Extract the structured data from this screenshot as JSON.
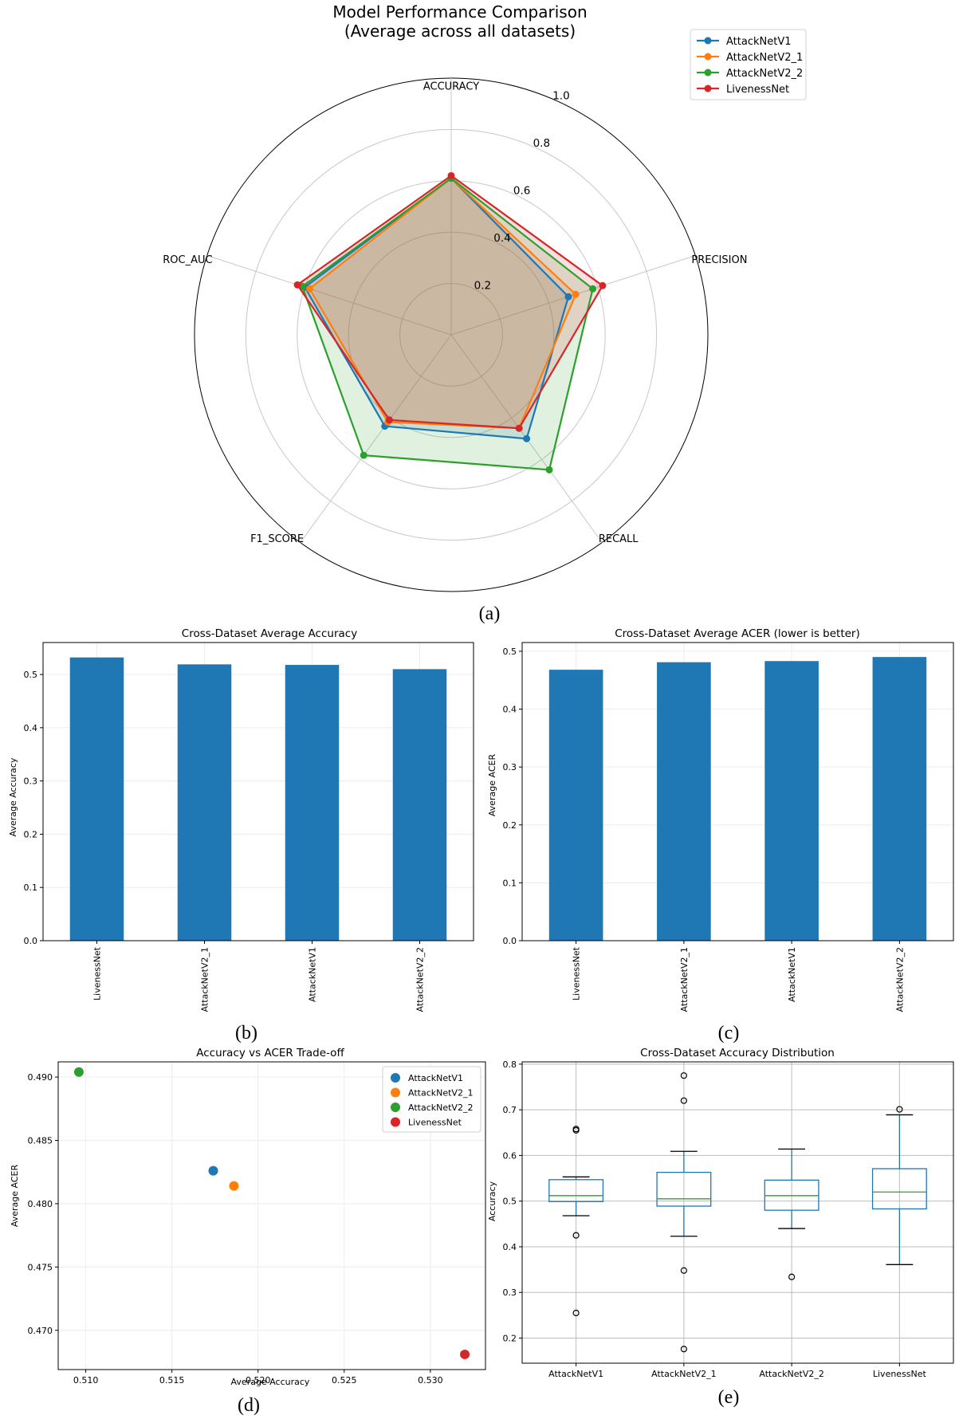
{
  "colors": {
    "AttackNetV1": "#1f77b4",
    "AttackNetV2_1": "#ff7f0e",
    "AttackNetV2_2": "#2ca02c",
    "LivenessNet": "#d62728",
    "bar": "#1f77b4",
    "median": "#2ca02c"
  },
  "chart_data": [
    {
      "id": "a",
      "type": "radar",
      "caption": "(a)",
      "title": "Model Performance Comparison\n(Average across all datasets)",
      "axes": [
        "ACCURACY",
        "PRECISION",
        "RECALL",
        "F1_SCORE",
        "ROC_AUC"
      ],
      "r_ticks": [
        0.2,
        0.4,
        0.6,
        0.8,
        1.0
      ],
      "r_tick_labels": [
        "0.2",
        "0.4",
        "0.6",
        "0.8",
        "1.0"
      ],
      "rlim": [
        0,
        1
      ],
      "legend_position": "top-right",
      "series": [
        {
          "name": "AttackNetV1",
          "values": [
            0.61,
            0.48,
            0.5,
            0.44,
            0.6
          ]
        },
        {
          "name": "AttackNetV2_1",
          "values": [
            0.61,
            0.51,
            0.45,
            0.42,
            0.58
          ]
        },
        {
          "name": "AttackNetV2_2",
          "values": [
            0.61,
            0.58,
            0.65,
            0.58,
            0.61
          ]
        },
        {
          "name": "LivenessNet",
          "values": [
            0.62,
            0.62,
            0.45,
            0.41,
            0.63
          ]
        }
      ]
    },
    {
      "id": "b",
      "type": "bar",
      "caption": "(b)",
      "title": "Cross-Dataset Average Accuracy",
      "ylabel": "Average Accuracy",
      "categories": [
        "LivenessNet",
        "AttackNetV2_1",
        "AttackNetV1",
        "AttackNetV2_2"
      ],
      "values": [
        0.532,
        0.519,
        0.518,
        0.51
      ],
      "ylim": [
        0,
        0.56
      ],
      "yticks": [
        0.0,
        0.1,
        0.2,
        0.3,
        0.4,
        0.5
      ],
      "ytick_labels": [
        "0.0",
        "0.1",
        "0.2",
        "0.3",
        "0.4",
        "0.5"
      ]
    },
    {
      "id": "c",
      "type": "bar",
      "caption": "(c)",
      "title": "Cross-Dataset Average ACER (lower is better)",
      "ylabel": "Average ACER",
      "categories": [
        "LivenessNet",
        "AttackNetV2_1",
        "AttackNetV1",
        "AttackNetV2_2"
      ],
      "values": [
        0.468,
        0.481,
        0.483,
        0.49
      ],
      "ylim": [
        0,
        0.515
      ],
      "yticks": [
        0.0,
        0.1,
        0.2,
        0.3,
        0.4,
        0.5
      ],
      "ytick_labels": [
        "0.0",
        "0.1",
        "0.2",
        "0.3",
        "0.4",
        "0.5"
      ]
    },
    {
      "id": "d",
      "type": "scatter",
      "caption": "(d)",
      "title": "Accuracy vs ACER Trade-off",
      "xlabel": "Average Accuracy",
      "ylabel": "Average ACER",
      "xlim": [
        0.5084,
        0.5332
      ],
      "ylim": [
        0.4669,
        0.4912
      ],
      "xticks": [
        0.51,
        0.515,
        0.52,
        0.525,
        0.53
      ],
      "xtick_labels": [
        "0.510",
        "0.515",
        "0.520",
        "0.525",
        "0.530"
      ],
      "yticks": [
        0.47,
        0.475,
        0.48,
        0.485,
        0.49
      ],
      "ytick_labels": [
        "0.470",
        "0.475",
        "0.480",
        "0.485",
        "0.490"
      ],
      "legend_position": "top-right",
      "series": [
        {
          "name": "AttackNetV1",
          "x": 0.5174,
          "y": 0.4826
        },
        {
          "name": "AttackNetV2_1",
          "x": 0.5186,
          "y": 0.4814
        },
        {
          "name": "AttackNetV2_2",
          "x": 0.5096,
          "y": 0.4904
        },
        {
          "name": "LivenessNet",
          "x": 0.532,
          "y": 0.4681
        }
      ]
    },
    {
      "id": "e",
      "type": "box",
      "caption": "(e)",
      "title": "Cross-Dataset Accuracy Distribution",
      "ylabel": "Accuracy",
      "ylim": [
        0.145,
        0.805
      ],
      "yticks": [
        0.2,
        0.3,
        0.4,
        0.5,
        0.6,
        0.7,
        0.8
      ],
      "ytick_labels": [
        "0.2",
        "0.3",
        "0.4",
        "0.5",
        "0.6",
        "0.7",
        "0.8"
      ],
      "categories": [
        "AttackNetV1",
        "AttackNetV2_1",
        "AttackNetV2_2",
        "LivenessNet"
      ],
      "boxes": [
        {
          "whisker_low": 0.468,
          "q1": 0.499,
          "median": 0.512,
          "q3": 0.547,
          "whisker_high": 0.553,
          "outliers": [
            0.255,
            0.425,
            0.655,
            0.658
          ]
        },
        {
          "whisker_low": 0.423,
          "q1": 0.489,
          "median": 0.505,
          "q3": 0.563,
          "whisker_high": 0.609,
          "outliers": [
            0.176,
            0.348,
            0.72,
            0.775
          ]
        },
        {
          "whisker_low": 0.44,
          "q1": 0.48,
          "median": 0.512,
          "q3": 0.546,
          "whisker_high": 0.614,
          "outliers": [
            0.334
          ]
        },
        {
          "whisker_low": 0.361,
          "q1": 0.483,
          "median": 0.52,
          "q3": 0.571,
          "whisker_high": 0.689,
          "outliers": [
            0.701
          ]
        }
      ]
    }
  ]
}
